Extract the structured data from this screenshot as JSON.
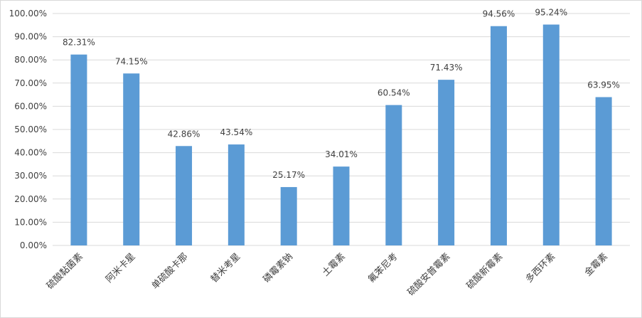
{
  "chart_data": {
    "type": "bar",
    "title": "",
    "xlabel": "",
    "ylabel": "",
    "ylim": [
      0,
      100
    ],
    "y_ticks": [
      "0.00%",
      "10.00%",
      "20.00%",
      "30.00%",
      "40.00%",
      "50.00%",
      "60.00%",
      "70.00%",
      "80.00%",
      "90.00%",
      "100.00%"
    ],
    "grid": true,
    "categories": [
      "硫酸黏菌素",
      "阿米卡星",
      "单硫酸卡那",
      "替米考星",
      "磷霉素钠",
      "土霉素",
      "氟苯尼考",
      "硫酸安普霉素",
      "硫酸新霉素",
      "多西环素",
      "金霉素"
    ],
    "values": [
      82.31,
      74.15,
      42.86,
      43.54,
      25.17,
      34.01,
      60.54,
      71.43,
      94.56,
      95.24,
      63.95
    ],
    "data_labels": [
      "82.31%",
      "74.15%",
      "42.86%",
      "43.54%",
      "25.17%",
      "34.01%",
      "60.54%",
      "71.43%",
      "94.56%",
      "95.24%",
      "63.95%"
    ],
    "bar_color": "#5b9bd5",
    "gridline_color": "#d9d9d9"
  }
}
